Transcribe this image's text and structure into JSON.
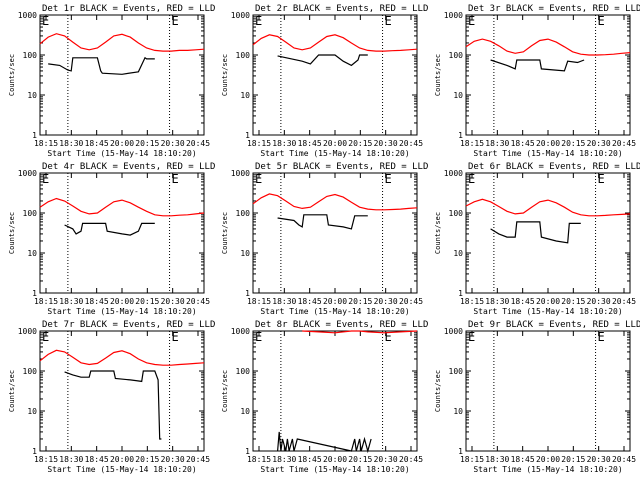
{
  "chart_data": [
    {
      "type": "line",
      "title": "Det 1r BLACK = Events, RED = LLD",
      "ylabel": "Counts/sec",
      "xlabel": "Start Time (15-May-14 18:10:20)",
      "x_ticks": [
        "18:15",
        "18:30",
        "18:45",
        "20:00",
        "20:15",
        "20:30",
        "20:45"
      ],
      "y_ticks": [
        "1",
        "10",
        "100",
        "1000"
      ],
      "ylim": [
        1,
        1000
      ],
      "y_scale": "log",
      "marker_labels": [
        "E",
        "E"
      ],
      "series": [
        {
          "name": "LLD",
          "color": "#ff0000",
          "x": [
            0,
            0.05,
            0.1,
            0.15,
            0.2,
            0.25,
            0.3,
            0.35,
            0.4,
            0.45,
            0.5,
            0.55,
            0.6,
            0.65,
            0.7,
            0.75,
            0.8,
            0.85,
            0.9,
            0.95,
            1
          ],
          "y": [
            190,
            280,
            340,
            300,
            210,
            150,
            135,
            150,
            210,
            300,
            330,
            280,
            200,
            150,
            130,
            125,
            125,
            130,
            130,
            135,
            140
          ]
        },
        {
          "name": "Events",
          "color": "#000000",
          "x": [
            0.05,
            0.12,
            0.17,
            0.19,
            0.2,
            0.3,
            0.35,
            0.37,
            0.38,
            0.5,
            0.6,
            0.64,
            0.65,
            0.7
          ],
          "y": [
            60,
            55,
            42,
            40,
            85,
            85,
            85,
            40,
            35,
            33,
            38,
            85,
            80,
            80
          ]
        }
      ]
    },
    {
      "type": "line",
      "title": "Det 2r BLACK = Events, RED = LLD",
      "ylabel": "Counts/sec",
      "xlabel": "Start Time (15-May-14 18:10:20)",
      "x_ticks": [
        "18:15",
        "18:30",
        "18:45",
        "20:00",
        "20:15",
        "20:30",
        "20:45"
      ],
      "y_ticks": [
        "1",
        "10",
        "100",
        "1000"
      ],
      "ylim": [
        1,
        1000
      ],
      "y_scale": "log",
      "marker_labels": [
        "E",
        "E"
      ],
      "series": [
        {
          "name": "LLD",
          "color": "#ff0000",
          "x": [
            0,
            0.05,
            0.1,
            0.15,
            0.2,
            0.25,
            0.3,
            0.35,
            0.4,
            0.45,
            0.5,
            0.55,
            0.6,
            0.65,
            0.7,
            0.75,
            0.8,
            0.85,
            0.9,
            0.95,
            1
          ],
          "y": [
            180,
            260,
            320,
            290,
            210,
            150,
            135,
            150,
            210,
            290,
            320,
            270,
            200,
            150,
            130,
            125,
            125,
            128,
            130,
            135,
            140
          ]
        },
        {
          "name": "Events",
          "color": "#000000",
          "x": [
            0.15,
            0.3,
            0.35,
            0.4,
            0.45,
            0.5,
            0.55,
            0.6,
            0.64,
            0.65,
            0.7
          ],
          "y": [
            95,
            70,
            60,
            100,
            100,
            100,
            70,
            55,
            75,
            100,
            100
          ]
        }
      ]
    },
    {
      "type": "line",
      "title": "Det 3r BLACK = Events, RED = LLD",
      "ylabel": "Counts/sec",
      "xlabel": "Start Time (15-May-14 18:10:20)",
      "x_ticks": [
        "18:15",
        "18:30",
        "18:45",
        "20:00",
        "20:15",
        "20:30",
        "20:45"
      ],
      "y_ticks": [
        "1",
        "10",
        "100",
        "1000"
      ],
      "ylim": [
        1,
        1000
      ],
      "y_scale": "log",
      "marker_labels": [
        "E",
        "E"
      ],
      "series": [
        {
          "name": "LLD",
          "color": "#ff0000",
          "x": [
            0,
            0.05,
            0.1,
            0.15,
            0.2,
            0.25,
            0.3,
            0.35,
            0.4,
            0.45,
            0.5,
            0.55,
            0.6,
            0.65,
            0.7,
            0.75,
            0.8,
            0.85,
            0.9,
            0.95,
            1
          ],
          "y": [
            160,
            220,
            250,
            220,
            170,
            125,
            110,
            120,
            170,
            230,
            250,
            210,
            160,
            120,
            105,
            100,
            100,
            102,
            105,
            110,
            115
          ]
        },
        {
          "name": "Events",
          "color": "#000000",
          "x": [
            0.15,
            0.25,
            0.3,
            0.31,
            0.45,
            0.46,
            0.6,
            0.62,
            0.68,
            0.72
          ],
          "y": [
            75,
            55,
            45,
            75,
            75,
            45,
            40,
            70,
            65,
            75
          ]
        }
      ]
    },
    {
      "type": "line",
      "title": "Det 4r BLACK = Events, RED = LLD",
      "ylabel": "Counts/sec",
      "xlabel": "Start Time (15-May-14 18:10:20)",
      "x_ticks": [
        "18:15",
        "18:30",
        "18:45",
        "20:00",
        "20:15",
        "20:30",
        "20:45"
      ],
      "y_ticks": [
        "1",
        "10",
        "100",
        "1000"
      ],
      "ylim": [
        1,
        1000
      ],
      "y_scale": "log",
      "marker_labels": [
        "E",
        "E"
      ],
      "series": [
        {
          "name": "LLD",
          "color": "#ff0000",
          "x": [
            0,
            0.05,
            0.1,
            0.15,
            0.2,
            0.25,
            0.3,
            0.35,
            0.4,
            0.45,
            0.5,
            0.55,
            0.6,
            0.65,
            0.7,
            0.75,
            0.8,
            0.85,
            0.9,
            0.95,
            1
          ],
          "y": [
            140,
            190,
            230,
            200,
            150,
            110,
            95,
            100,
            140,
            190,
            210,
            180,
            140,
            110,
            90,
            85,
            85,
            88,
            90,
            95,
            100
          ]
        },
        {
          "name": "Events",
          "color": "#000000",
          "x": [
            0.15,
            0.2,
            0.22,
            0.25,
            0.26,
            0.4,
            0.41,
            0.5,
            0.55,
            0.6,
            0.62,
            0.7
          ],
          "y": [
            50,
            40,
            30,
            35,
            55,
            55,
            35,
            30,
            28,
            35,
            55,
            55
          ]
        }
      ]
    },
    {
      "type": "line",
      "title": "Det 5r BLACK = Events, RED = LLD",
      "ylabel": "Counts/sec",
      "xlabel": "Start Time (15-May-14 18:10:20)",
      "x_ticks": [
        "18:15",
        "18:30",
        "18:45",
        "20:00",
        "20:15",
        "20:30",
        "20:45"
      ],
      "y_ticks": [
        "1",
        "10",
        "100",
        "1000"
      ],
      "ylim": [
        1,
        1000
      ],
      "y_scale": "log",
      "marker_labels": [
        "E",
        "E"
      ],
      "series": [
        {
          "name": "LLD",
          "color": "#ff0000",
          "x": [
            0,
            0.05,
            0.1,
            0.15,
            0.2,
            0.25,
            0.3,
            0.35,
            0.4,
            0.45,
            0.5,
            0.55,
            0.6,
            0.65,
            0.7,
            0.75,
            0.8,
            0.85,
            0.9,
            0.95,
            1
          ],
          "y": [
            170,
            240,
            300,
            270,
            200,
            145,
            130,
            140,
            190,
            260,
            290,
            250,
            185,
            140,
            125,
            120,
            120,
            122,
            125,
            130,
            135
          ]
        },
        {
          "name": "Events",
          "color": "#000000",
          "x": [
            0.15,
            0.25,
            0.28,
            0.3,
            0.31,
            0.45,
            0.46,
            0.55,
            0.6,
            0.62,
            0.7
          ],
          "y": [
            75,
            65,
            50,
            45,
            90,
            90,
            50,
            45,
            40,
            85,
            85
          ]
        }
      ]
    },
    {
      "type": "line",
      "title": "Det 6r BLACK = Events, RED = LLD",
      "ylabel": "Counts/sec",
      "xlabel": "Start Time (15-May-14 18:10:20)",
      "x_ticks": [
        "18:15",
        "18:30",
        "18:45",
        "20:00",
        "20:15",
        "20:30",
        "20:45"
      ],
      "y_ticks": [
        "1",
        "10",
        "100",
        "1000"
      ],
      "ylim": [
        1,
        1000
      ],
      "y_scale": "log",
      "marker_labels": [
        "E",
        "E"
      ],
      "series": [
        {
          "name": "LLD",
          "color": "#ff0000",
          "x": [
            0,
            0.05,
            0.1,
            0.15,
            0.2,
            0.25,
            0.3,
            0.35,
            0.4,
            0.45,
            0.5,
            0.55,
            0.6,
            0.65,
            0.7,
            0.75,
            0.8,
            0.85,
            0.9,
            0.95,
            1
          ],
          "y": [
            150,
            190,
            220,
            190,
            145,
            110,
            95,
            100,
            140,
            190,
            210,
            180,
            140,
            105,
            90,
            85,
            85,
            87,
            90,
            92,
            95
          ]
        },
        {
          "name": "Events",
          "color": "#000000",
          "x": [
            0.15,
            0.2,
            0.25,
            0.3,
            0.31,
            0.45,
            0.46,
            0.55,
            0.62,
            0.63,
            0.7
          ],
          "y": [
            40,
            30,
            25,
            25,
            60,
            60,
            25,
            20,
            18,
            55,
            55
          ]
        }
      ]
    },
    {
      "type": "line",
      "title": "Det 7r BLACK = Events, RED = LLD",
      "ylabel": "Counts/sec",
      "xlabel": "Start Time (15-May-14 18:10:20)",
      "x_ticks": [
        "18:15",
        "18:30",
        "18:45",
        "20:00",
        "20:15",
        "20:30",
        "20:45"
      ],
      "y_ticks": [
        "1",
        "10",
        "100",
        "1000"
      ],
      "ylim": [
        1,
        1000
      ],
      "y_scale": "log",
      "marker_labels": [
        "E",
        "E"
      ],
      "series": [
        {
          "name": "LLD",
          "color": "#ff0000",
          "x": [
            0,
            0.05,
            0.1,
            0.15,
            0.2,
            0.25,
            0.3,
            0.35,
            0.4,
            0.45,
            0.5,
            0.55,
            0.6,
            0.65,
            0.7,
            0.75,
            0.8,
            0.85,
            0.9,
            0.95,
            1
          ],
          "y": [
            180,
            260,
            330,
            300,
            220,
            160,
            145,
            155,
            210,
            290,
            320,
            270,
            200,
            160,
            145,
            140,
            140,
            145,
            150,
            155,
            160
          ]
        },
        {
          "name": "Events",
          "color": "#000000",
          "x": [
            0.15,
            0.2,
            0.25,
            0.3,
            0.31,
            0.45,
            0.46,
            0.55,
            0.62,
            0.63,
            0.7,
            0.72,
            0.73,
            0.74
          ],
          "y": [
            95,
            80,
            70,
            70,
            100,
            100,
            65,
            60,
            55,
            100,
            100,
            60,
            2,
            2
          ]
        }
      ]
    },
    {
      "type": "line",
      "title": "Det 8r BLACK = Events, RED = LLD",
      "ylabel": "Counts/sec",
      "xlabel": "Start Time (15-May-14 18:10:20)",
      "x_ticks": [
        "18:15",
        "18:30",
        "18:45",
        "20:00",
        "20:15",
        "20:30",
        "20:45"
      ],
      "y_ticks": [
        "1",
        "10",
        "100",
        "1000"
      ],
      "ylim": [
        1,
        1000
      ],
      "y_scale": "log",
      "marker_labels": [
        "E",
        "E"
      ],
      "series": [
        {
          "name": "LLD",
          "color": "#ff0000",
          "x": [
            0.3,
            0.4,
            0.5,
            0.6,
            0.65,
            0.7,
            0.8,
            0.9,
            1
          ],
          "y": [
            1000,
            950,
            900,
            1000,
            1000,
            950,
            900,
            950,
            1000
          ]
        },
        {
          "name": "Events",
          "color": "#000000",
          "x": [
            0.15,
            0.16,
            0.17,
            0.18,
            0.2,
            0.21,
            0.22,
            0.24,
            0.25,
            0.27,
            0.6,
            0.62,
            0.63,
            0.65,
            0.66,
            0.68,
            0.7,
            0.72
          ],
          "y": [
            1,
            3,
            1,
            2,
            1,
            2,
            1,
            2,
            1,
            2,
            1,
            2,
            1,
            2,
            1,
            2,
            1,
            2
          ]
        }
      ]
    },
    {
      "type": "line",
      "title": "Det 9r BLACK = Events, RED = LLD",
      "ylabel": "Counts/sec",
      "xlabel": "Start Time (15-May-14 18:10:20)",
      "x_ticks": [
        "18:15",
        "18:30",
        "18:45",
        "20:00",
        "20:15",
        "20:30",
        "20:45"
      ],
      "y_ticks": [
        "1",
        "10",
        "100",
        "1000"
      ],
      "ylim": [
        1,
        1000
      ],
      "y_scale": "log",
      "marker_labels": [
        "E",
        "E"
      ],
      "series": []
    }
  ]
}
